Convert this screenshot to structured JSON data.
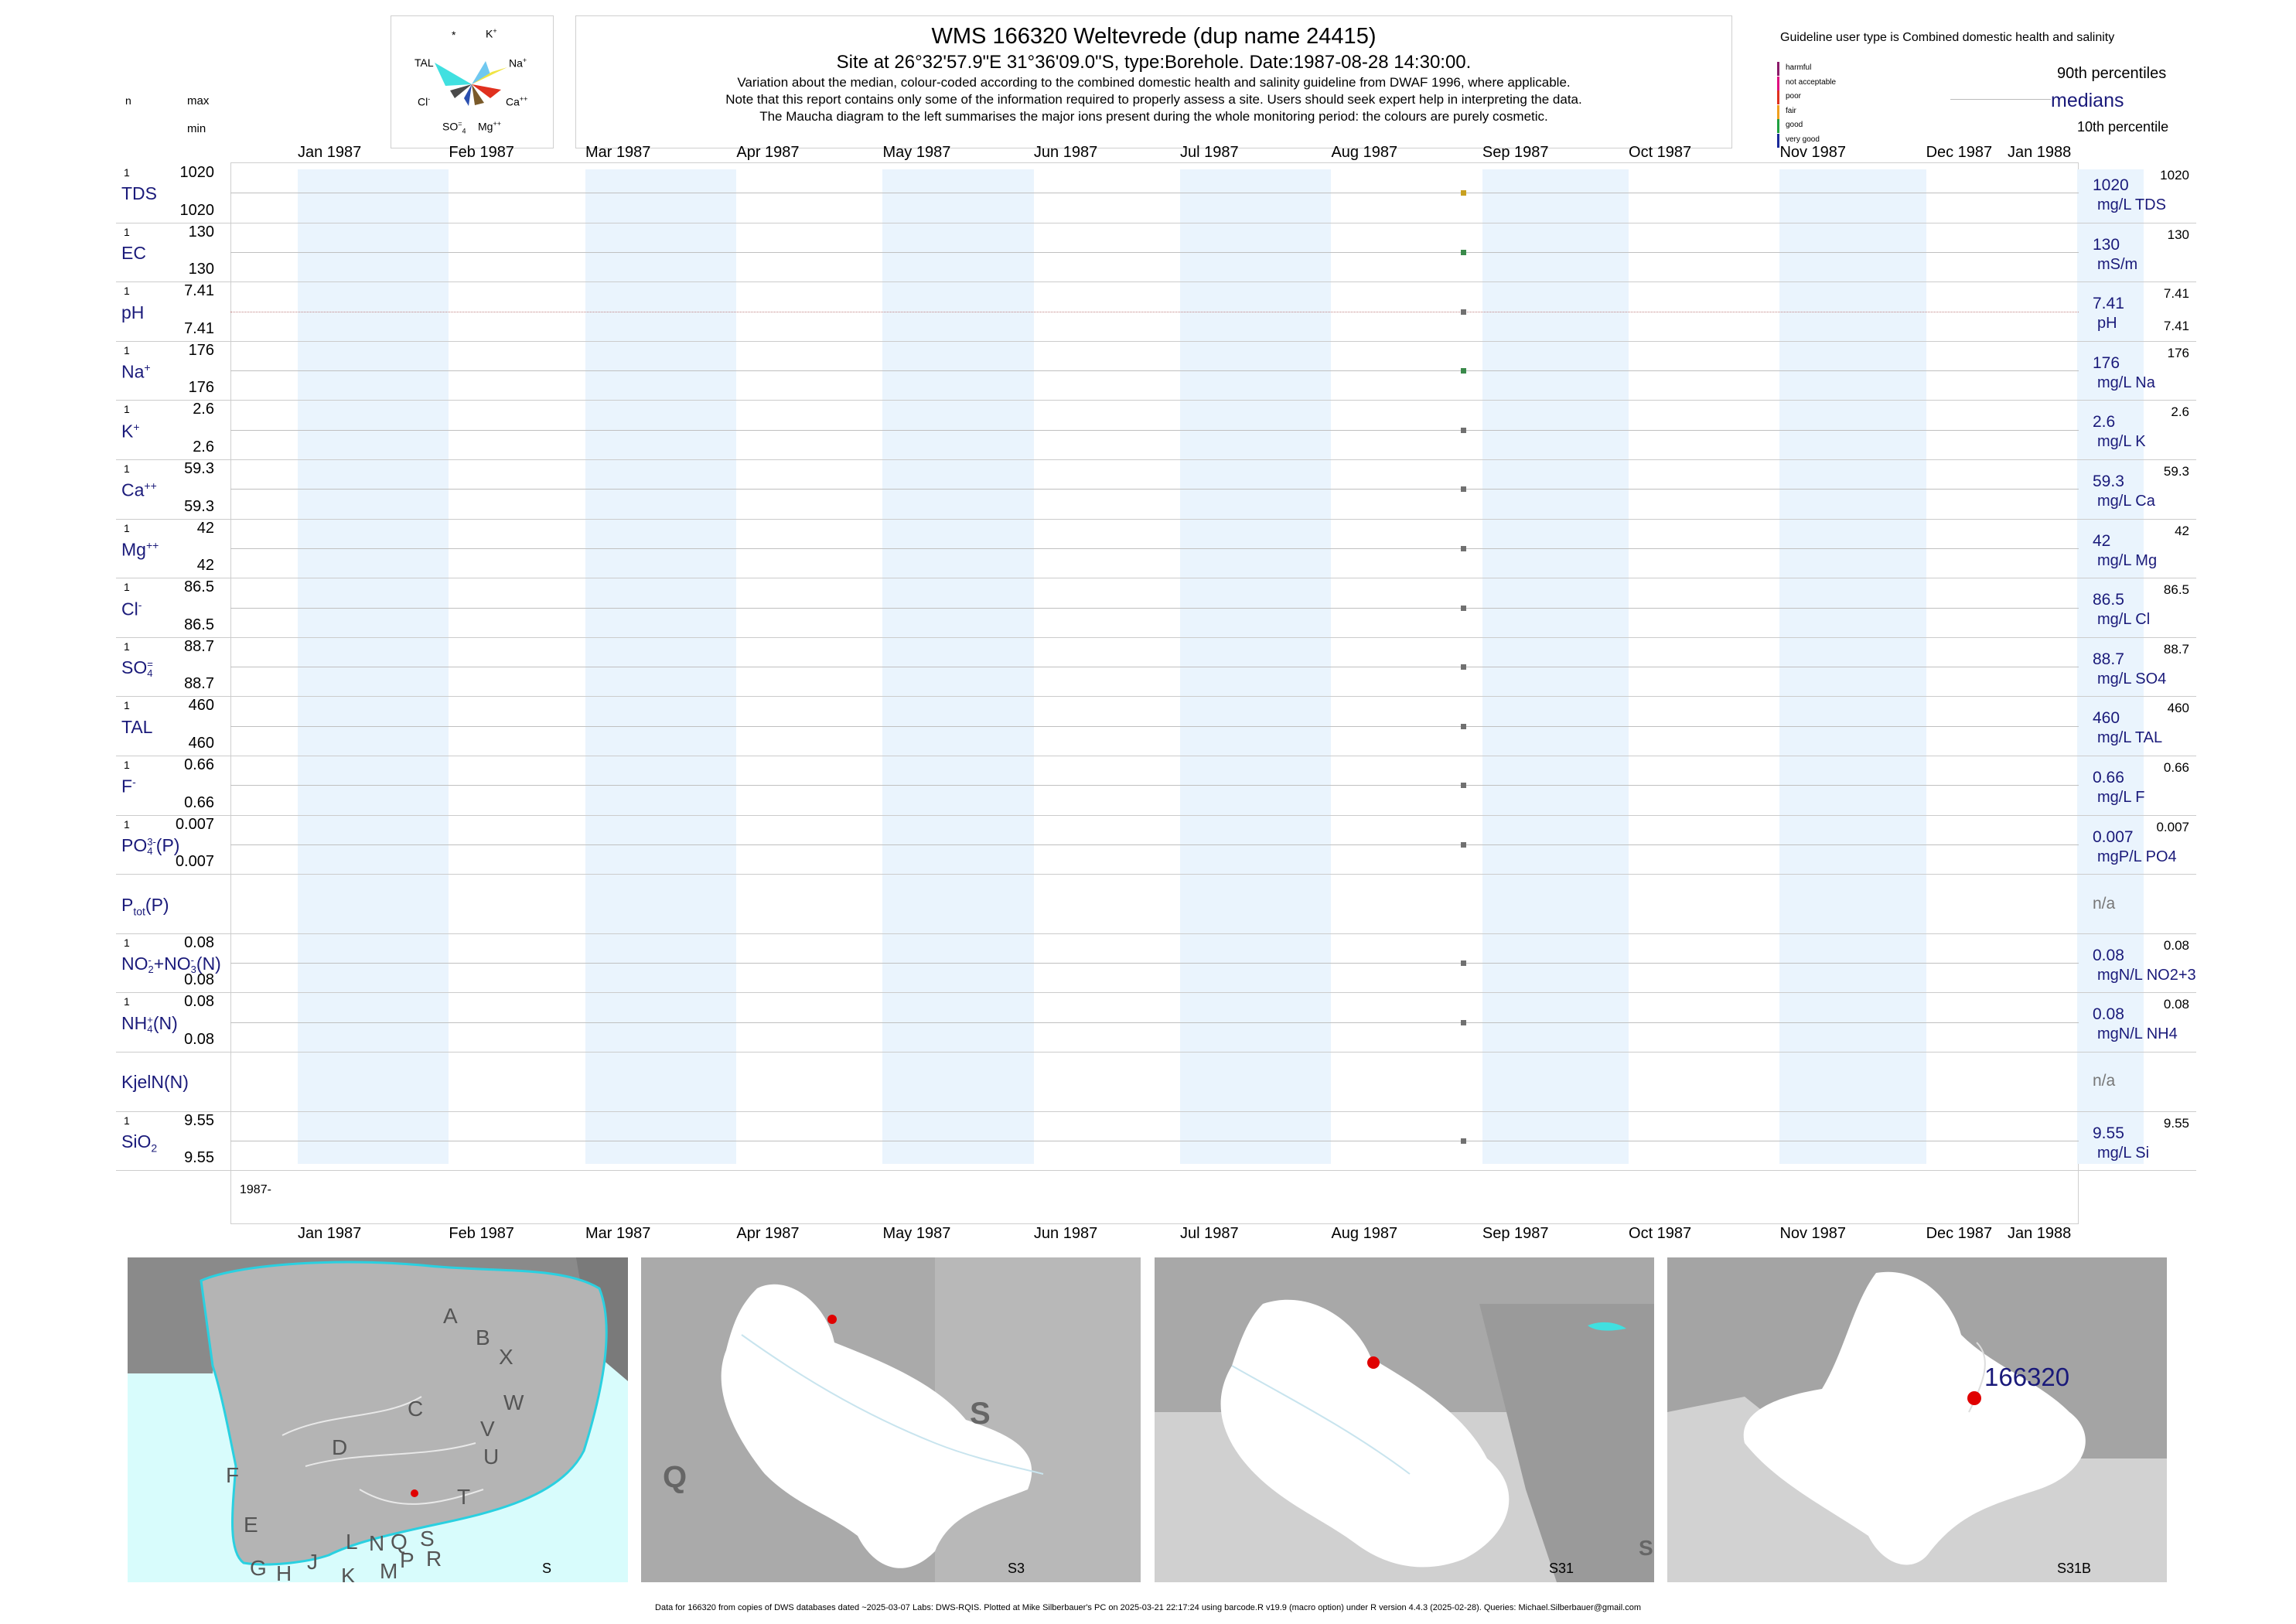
{
  "header": {
    "title": "WMS 166320  Weltevrede (dup name 24415)",
    "site": "Site at 26°32'57.9\"E 31°36'09.0\"S, type:Borehole. Date:1987-08-28 14:30:00.",
    "note1": "Variation about the median,  colour-coded according to the combined domestic health and salinity guideline from DWAF 1996, where applicable.",
    "note2": "Note that this report contains only some of the information required to properly assess a site. Users should seek expert help in interpreting the data.",
    "note3": "The Maucha diagram to the left summarises the major ions present during the whole monitoring period: the colours are purely cosmetic."
  },
  "left_header": {
    "n": "n",
    "max": "max",
    "min": "min"
  },
  "maucha": {
    "labels": {
      "star": "*",
      "k": "K",
      "k_sup": "+",
      "na": "Na",
      "na_sup": "+",
      "tal": "TAL",
      "cl": "Cl",
      "cl_sup": "-",
      "ca": "Ca",
      "ca_sup": "++",
      "so4": "SO",
      "so4_sub": "4",
      "so4_sup": "=",
      "mg": "Mg",
      "mg_sup": "++"
    },
    "colors": [
      "#f0e442",
      "#e0301e",
      "#7a5a2a",
      "#2a4fb0",
      "#40e0e0",
      "#70c8f0",
      "#4a4a4a"
    ]
  },
  "legend": {
    "title": "Guideline user type is Combined domestic health and salinity",
    "classes": [
      {
        "label": "harmful",
        "color": "#8b1a6a"
      },
      {
        "label": "not acceptable",
        "color": "#e01080"
      },
      {
        "label": "poor",
        "color": "#e03020"
      },
      {
        "label": "fair",
        "color": "#f0a020"
      },
      {
        "label": "good",
        "color": "#20a040"
      },
      {
        "label": "very good",
        "color": "#1a2a9a"
      }
    ],
    "p90": "90th percentiles",
    "medians": "medians",
    "p10": "10th percentile"
  },
  "chart_data": {
    "type": "scatter",
    "x_axis": {
      "range": [
        "1987-01-01",
        "1988-01-01"
      ],
      "ticks": [
        "Jan 1987",
        "Feb 1987",
        "Mar 1987",
        "Apr 1987",
        "May 1987",
        "Jun 1987",
        "Jul 1987",
        "Aug 1987",
        "Sep 1987",
        "Oct 1987",
        "Nov 1987",
        "Dec 1987",
        "Jan 1988"
      ]
    },
    "sample_date": "1987-08-28",
    "year_label": "1987-",
    "series": [
      {
        "name": "TDS",
        "n": "1",
        "max": "1020",
        "min": "1020",
        "value": 1020,
        "right_value": "1020",
        "unit": "mg/L TDS",
        "right_max": "1020",
        "right_min": "",
        "color": "#c8a020"
      },
      {
        "name": "EC",
        "n": "1",
        "max": "130",
        "min": "130",
        "value": 130,
        "right_value": "130",
        "unit": "mS/m",
        "right_max": "130",
        "right_min": "",
        "color": "#3a8a4a"
      },
      {
        "name": "pH",
        "n": "1",
        "max": "7.41",
        "min": "7.41",
        "value": 7.41,
        "right_value": "7.41",
        "unit": "pH",
        "right_max": "7.41",
        "right_min": "7.41",
        "color": "#707070"
      },
      {
        "name": "Na",
        "sup": "+",
        "n": "1",
        "max": "176",
        "min": "176",
        "value": 176,
        "right_value": "176",
        "unit": "mg/L Na",
        "right_max": "176",
        "right_min": "",
        "color": "#3a8a4a"
      },
      {
        "name": "K",
        "sup": "+",
        "n": "1",
        "max": "2.6",
        "min": "2.6",
        "value": 2.6,
        "right_value": "2.6",
        "unit": "mg/L K",
        "right_max": "2.6",
        "right_min": "",
        "color": "#707070"
      },
      {
        "name": "Ca",
        "sup": "++",
        "n": "1",
        "max": "59.3",
        "min": "59.3",
        "value": 59.3,
        "right_value": "59.3",
        "unit": "mg/L Ca",
        "right_max": "59.3",
        "right_min": "",
        "color": "#707070"
      },
      {
        "name": "Mg",
        "sup": "++",
        "n": "1",
        "max": "42",
        "min": "42",
        "value": 42,
        "right_value": "42",
        "unit": "mg/L Mg",
        "right_max": "42",
        "right_min": "",
        "color": "#707070"
      },
      {
        "name": "Cl",
        "sup": "-",
        "n": "1",
        "max": "86.5",
        "min": "86.5",
        "value": 86.5,
        "right_value": "86.5",
        "unit": "mg/L Cl",
        "right_max": "86.5",
        "right_min": "",
        "color": "#707070"
      },
      {
        "name": "SO",
        "sub": "4",
        "sup": "=",
        "n": "1",
        "max": "88.7",
        "min": "88.7",
        "value": 88.7,
        "right_value": "88.7",
        "unit": "mg/L SO4",
        "right_max": "88.7",
        "right_min": "",
        "color": "#707070"
      },
      {
        "name": "TAL",
        "n": "1",
        "max": "460",
        "min": "460",
        "value": 460,
        "right_value": "460",
        "unit": "mg/L TAL",
        "right_max": "460",
        "right_min": "",
        "color": "#707070"
      },
      {
        "name": "F",
        "sup": "-",
        "n": "1",
        "max": "0.66",
        "min": "0.66",
        "value": 0.66,
        "right_value": "0.66",
        "unit": "mg/L F",
        "right_max": "0.66",
        "right_min": "",
        "color": "#707070"
      },
      {
        "name": "PO",
        "sub": "4",
        "sup": "3-",
        "suffix": "(P)",
        "n": "1",
        "max": "0.007",
        "min": "0.007",
        "value": 0.007,
        "right_value": "0.007",
        "unit": "mgP/L PO4",
        "right_max": "0.007",
        "right_min": "",
        "color": "#707070"
      },
      {
        "name": "P",
        "sub": "tot",
        "suffix": "(P)",
        "n": "",
        "max": "",
        "min": "",
        "value": null,
        "right_value": "n/a",
        "unit": "",
        "right_max": "",
        "right_min": "",
        "color": "#707070"
      },
      {
        "name": "NO",
        "sub": "2",
        "sup": "-",
        "suffix": "+NO",
        "sub2": "3",
        "sup2": "-",
        "suffix2": "(N)",
        "n": "1",
        "max": "0.08",
        "min": "0.08",
        "value": 0.08,
        "right_value": "0.08",
        "unit": "mgN/L NO2+3",
        "right_max": "0.08",
        "right_min": "",
        "color": "#707070"
      },
      {
        "name": "NH",
        "sub": "4",
        "sup": "+",
        "suffix": "(N)",
        "n": "1",
        "max": "0.08",
        "min": "0.08",
        "value": 0.08,
        "right_value": "0.08",
        "unit": "mgN/L NH4",
        "right_max": "0.08",
        "right_min": "",
        "color": "#707070"
      },
      {
        "name": "KjelN(N)",
        "n": "",
        "max": "",
        "min": "",
        "value": null,
        "right_value": "n/a",
        "unit": "",
        "right_max": "",
        "right_min": "",
        "color": "#707070"
      },
      {
        "name": "SiO",
        "sub": "2",
        "n": "1",
        "max": "9.55",
        "min": "9.55",
        "value": 9.55,
        "right_value": "9.55",
        "unit": "mg/L Si",
        "right_max": "9.55",
        "right_min": "",
        "color": "#707070"
      }
    ]
  },
  "maps": [
    {
      "label": "S",
      "regions": [
        "A",
        "B",
        "X",
        "C",
        "W",
        "V",
        "D",
        "U",
        "T",
        "F",
        "E",
        "S",
        "Q",
        "R",
        "L",
        "N",
        "G",
        "H",
        "J",
        "K",
        "M",
        "P"
      ]
    },
    {
      "label": "S3",
      "regions": [
        "S",
        "Q"
      ]
    },
    {
      "label": "S31",
      "regions": [
        "S"
      ]
    },
    {
      "label": "S31B",
      "site": "166320"
    }
  ],
  "footer": "Data for 166320 from copies of DWS databases dated ~2025-03-07 Labs: DWS-RQIS. Plotted at Mike Silberbauer's PC on 2025-03-21 22:17:24 using barcode.R v19.9 (macro option) under R version 4.4.3 (2025-02-28). Queries: Michael.Silberbauer@gmail.com"
}
